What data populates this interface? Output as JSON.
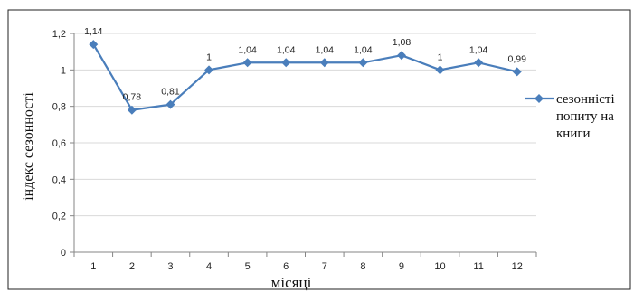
{
  "chart_data": {
    "type": "line",
    "title": "",
    "xlabel": "місяці",
    "ylabel": "індекс сезонності",
    "categories": [
      "1",
      "2",
      "3",
      "4",
      "5",
      "6",
      "7",
      "8",
      "9",
      "10",
      "11",
      "12"
    ],
    "y_ticks": [
      "0",
      "0,2",
      "0,4",
      "0,6",
      "0,8",
      "1",
      "1,2"
    ],
    "ylim": [
      0,
      1.2
    ],
    "grid": "horizontal",
    "legend_position": "right",
    "series": [
      {
        "name": "сезонністі попиту на книги",
        "legend_lines": [
          "сезонністі",
          "попиту на",
          "книги"
        ],
        "values": [
          1.14,
          0.78,
          0.81,
          1,
          1.04,
          1.04,
          1.04,
          1.04,
          1.08,
          1,
          1.04,
          0.99
        ],
        "data_labels": [
          "1,14",
          "0,78",
          "0,81",
          "1",
          "1,04",
          "1,04",
          "1,04",
          "1,04",
          "1,08",
          "1",
          "1,04",
          "0,99"
        ],
        "color": "#4a7ebb",
        "marker": "diamond"
      }
    ]
  }
}
